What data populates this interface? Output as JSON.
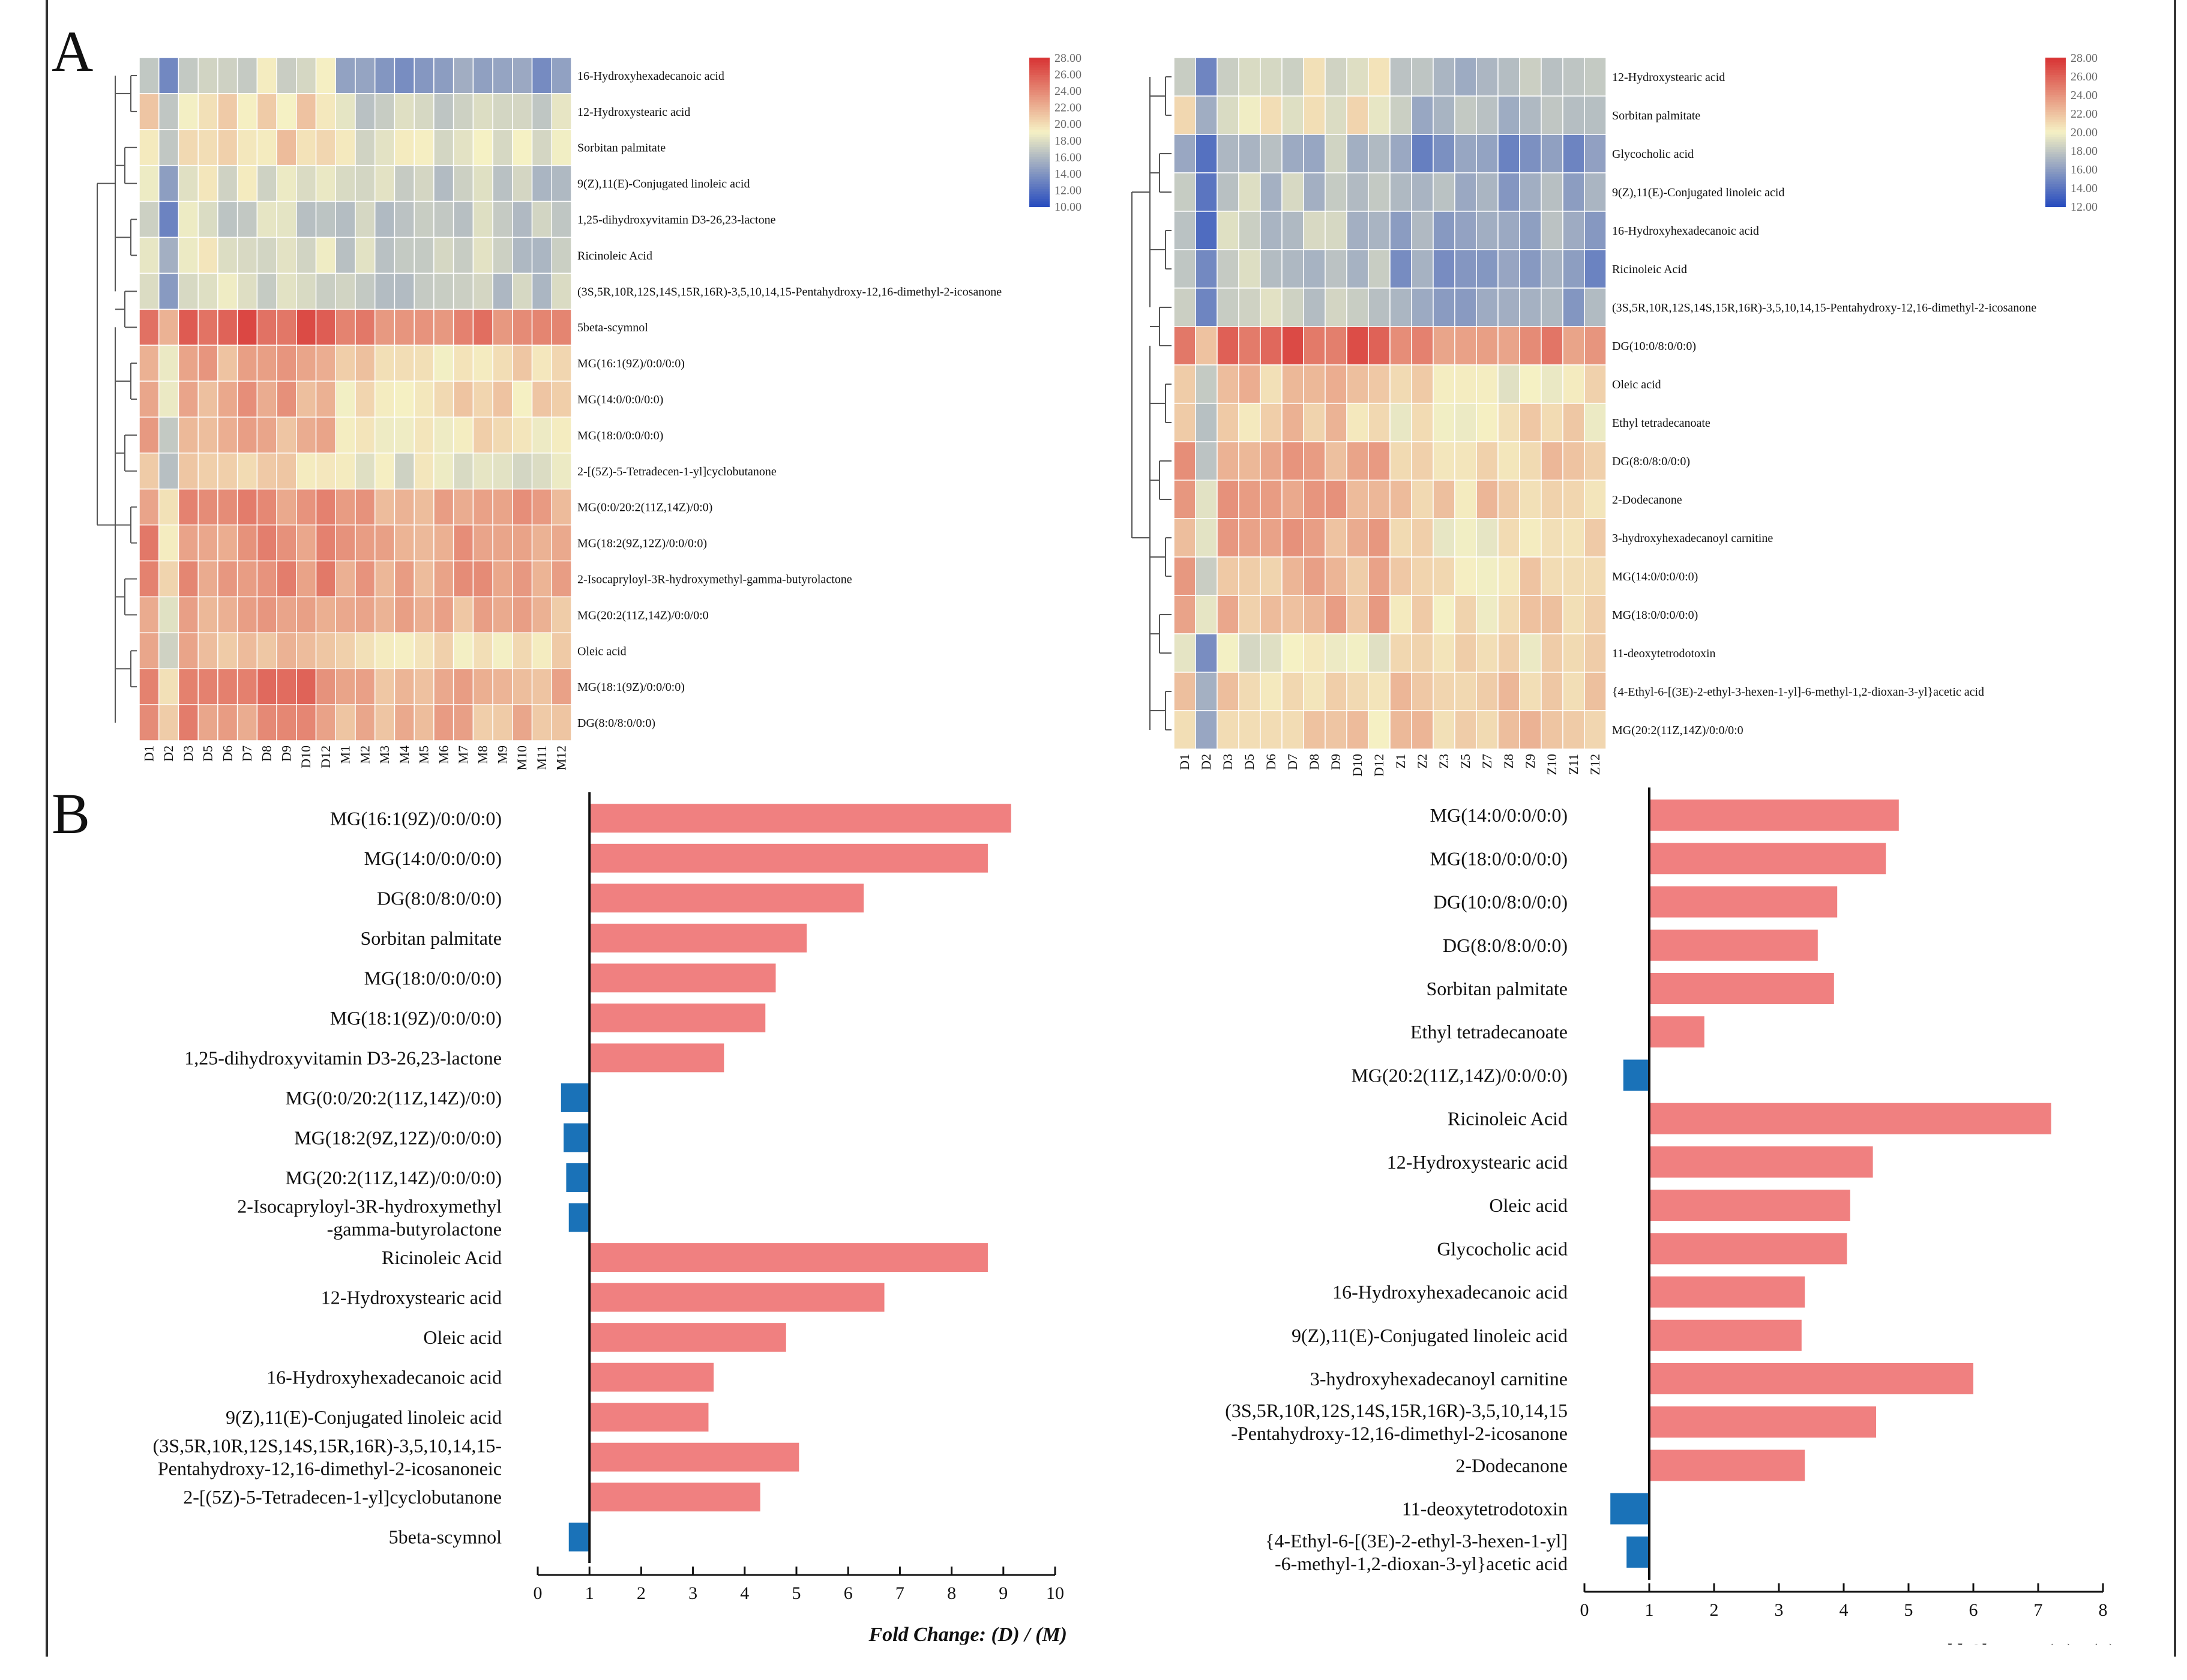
{
  "panels": {
    "a_label": "A",
    "b_label": "B"
  },
  "colors": {
    "low": "#2b4fbf",
    "mid": "#f5f1c4",
    "high": "#d83535",
    "up_bar": "#f08080",
    "down_bar": "#1a72b8"
  },
  "chart_data": [
    {
      "type": "heatmap",
      "id": "heatmap_dm",
      "columns": [
        "D1",
        "D2",
        "D3",
        "D5",
        "D6",
        "D7",
        "D8",
        "D9",
        "D10",
        "D12",
        "M1",
        "M2",
        "M3",
        "M4",
        "M5",
        "M6",
        "M7",
        "M8",
        "M9",
        "M10",
        "M11",
        "M12"
      ],
      "rows": [
        "16-Hydroxyhexadecanoic acid",
        "12-Hydroxystearic acid",
        "Sorbitan palmitate",
        "9(Z),11(E)-Conjugated linoleic acid",
        "1,25-dihydroxyvitamin D3-26,23-lactone",
        "Ricinoleic Acid",
        "(3S,5R,10R,12S,14S,15R,16R)-3,5,10,14,15-Pentahydroxy-12,16-dimethyl-2-icosanone",
        "5beta-scymnol",
        "MG(16:1(9Z)/0:0/0:0)",
        "MG(14:0/0:0/0:0)",
        "MG(18:0/0:0/0:0)",
        "2-[(5Z)-5-Tetradecen-1-yl]cyclobutanone",
        "MG(0:0/20:2(11Z,14Z)/0:0)",
        "MG(18:2(9Z,12Z)/0:0/0:0)",
        "2-Isocapryloyl-3R-hydroxymethyl-gamma-butyrolactone",
        "MG(20:2(11Z,14Z)/0:0/0:0",
        "Oleic acid",
        "MG(18:1(9Z)/0:0/0:0)",
        "DG(8:0/8:0/0:0)"
      ],
      "row_base_values": [
        15.5,
        18.5,
        19.0,
        17.5,
        17.0,
        17.5,
        17.0,
        25.0,
        21.0,
        21.0,
        20.5,
        19.0,
        23.0,
        23.0,
        23.0,
        22.0,
        20.5,
        23.0,
        22.5
      ],
      "d_offsets": [
        2.5,
        1.5,
        1.5,
        1.0,
        0.5,
        1.0,
        0.5,
        1.0,
        1.5,
        1.5,
        1.5,
        1.0,
        0.5,
        0.5,
        0.5,
        0.5,
        1.0,
        1.5,
        1.0
      ],
      "legend_ticks": [
        "28.00",
        "26.00",
        "24.00",
        "22.00",
        "20.00",
        "18.00",
        "16.00",
        "14.00",
        "12.00",
        "10.00"
      ],
      "scale_range": [
        10,
        28
      ]
    },
    {
      "type": "heatmap",
      "id": "heatmap_dz",
      "columns": [
        "D1",
        "D2",
        "D3",
        "D5",
        "D6",
        "D7",
        "D8",
        "D9",
        "D10",
        "D12",
        "Z1",
        "Z2",
        "Z3",
        "Z5",
        "Z7",
        "Z8",
        "Z9",
        "Z10",
        "Z11",
        "Z12"
      ],
      "rows": [
        "12-Hydroxystearic acid",
        "Sorbitan palmitate",
        "Glycocholic acid",
        "9(Z),11(E)-Conjugated linoleic acid",
        "16-Hydroxyhexadecanoic acid",
        "Ricinoleic Acid",
        "(3S,5R,10R,12S,14S,15R,16R)-3,5,10,14,15-Pentahydroxy-12,16-dimethyl-2-icosanone",
        "DG(10:0/8:0/0:0)",
        "Oleic acid",
        "Ethyl tetradecanoate",
        "DG(8:0/8:0/0:0)",
        "2-Dodecanone",
        "3-hydroxyhexadecanoyl carnitine",
        "MG(14:0/0:0/0:0)",
        "MG(18:0/0:0/0:0)",
        "11-deoxytetrodotoxin",
        "{4-Ethyl-6-[(3E)-2-ethyl-3-hexen-1-yl]-6-methyl-1,2-dioxan-3-yl}acetic acid",
        "MG(20:2(11Z,14Z)/0:0/0:0"
      ],
      "row_base_values": [
        18.0,
        18.5,
        16.0,
        17.0,
        17.0,
        16.5,
        17.0,
        25.0,
        21.0,
        21.0,
        22.0,
        22.0,
        21.5,
        21.5,
        21.5,
        20.0,
        21.5,
        21.5
      ],
      "d_offsets": [
        1.5,
        1.5,
        1.5,
        1.0,
        1.0,
        1.5,
        1.0,
        1.0,
        1.0,
        0.5,
        1.0,
        1.0,
        1.5,
        1.0,
        1.0,
        -0.5,
        -0.5,
        -0.5
      ],
      "legend_ticks": [
        "28.00",
        "26.00",
        "24.00",
        "22.00",
        "20.00",
        "18.00",
        "16.00",
        "14.00",
        "12.00"
      ],
      "scale_range": [
        12,
        28
      ]
    },
    {
      "type": "bar",
      "id": "fc_dm",
      "orientation": "horizontal",
      "baseline": 1,
      "xlim": [
        0,
        10
      ],
      "xticks": [
        "0",
        "1",
        "2",
        "3",
        "4",
        "5",
        "6",
        "7",
        "8",
        "9",
        "10"
      ],
      "xlabel": "Fold Change: (D) / (M)",
      "categories": [
        "MG(16:1(9Z)/0:0/0:0)",
        "MG(14:0/0:0/0:0)",
        "DG(8:0/8:0/0:0)",
        "Sorbitan palmitate",
        "MG(18:0/0:0/0:0)",
        "MG(18:1(9Z)/0:0/0:0)",
        "1,25-dihydroxyvitamin D3-26,23-lactone",
        "MG(0:0/20:2(11Z,14Z)/0:0)",
        "MG(18:2(9Z,12Z)/0:0/0:0)",
        "MG(20:2(11Z,14Z)/0:0/0:0)",
        "2-Isocapryloyl-3R-hydroxymethyl\n-gamma-butyrolactone",
        "Ricinoleic Acid",
        "12-Hydroxystearic acid",
        "Oleic acid",
        "16-Hydroxyhexadecanoic acid",
        "9(Z),11(E)-Conjugated linoleic acid",
        "(3S,5R,10R,12S,14S,15R,16R)-3,5,10,14,15-\nPentahydroxy-12,16-dimethyl-2-icosanoneic",
        "2-[(5Z)-5-Tetradecen-1-yl]cyclobutanone",
        "5beta-scymnol"
      ],
      "values": [
        9.15,
        8.7,
        6.3,
        5.2,
        4.6,
        4.4,
        3.6,
        0.45,
        0.5,
        0.55,
        0.6,
        8.7,
        6.7,
        4.8,
        3.4,
        3.3,
        5.05,
        4.3,
        0.6
      ]
    },
    {
      "type": "bar",
      "id": "fc_dz",
      "orientation": "horizontal",
      "baseline": 1,
      "xlim": [
        0,
        8
      ],
      "xticks": [
        "0",
        "1",
        "2",
        "3",
        "4",
        "5",
        "6",
        "7",
        "8"
      ],
      "xlabel": "Fold Change: (D) / (Z)",
      "categories": [
        "MG(14:0/0:0/0:0)",
        "MG(18:0/0:0/0:0)",
        "DG(10:0/8:0/0:0)",
        "DG(8:0/8:0/0:0)",
        "Sorbitan palmitate",
        "Ethyl tetradecanoate",
        "MG(20:2(11Z,14Z)/0:0/0:0)",
        "Ricinoleic Acid",
        "12-Hydroxystearic acid",
        "Oleic acid",
        "Glycocholic acid",
        "16-Hydroxyhexadecanoic acid",
        "9(Z),11(E)-Conjugated linoleic acid",
        "3-hydroxyhexadecanoyl carnitine",
        "(3S,5R,10R,12S,14S,15R,16R)-3,5,10,14,15\n-Pentahydroxy-12,16-dimethyl-2-icosanone",
        "2-Dodecanone",
        "11-deoxytetrodotoxin",
        "{4-Ethyl-6-[(3E)-2-ethyl-3-hexen-1-yl]\n-6-methyl-1,2-dioxan-3-yl}acetic acid"
      ],
      "values": [
        4.85,
        4.65,
        3.9,
        3.6,
        3.85,
        1.85,
        0.6,
        7.2,
        4.45,
        4.1,
        4.05,
        3.4,
        3.35,
        6.0,
        4.5,
        3.4,
        0.4,
        0.65
      ]
    }
  ]
}
